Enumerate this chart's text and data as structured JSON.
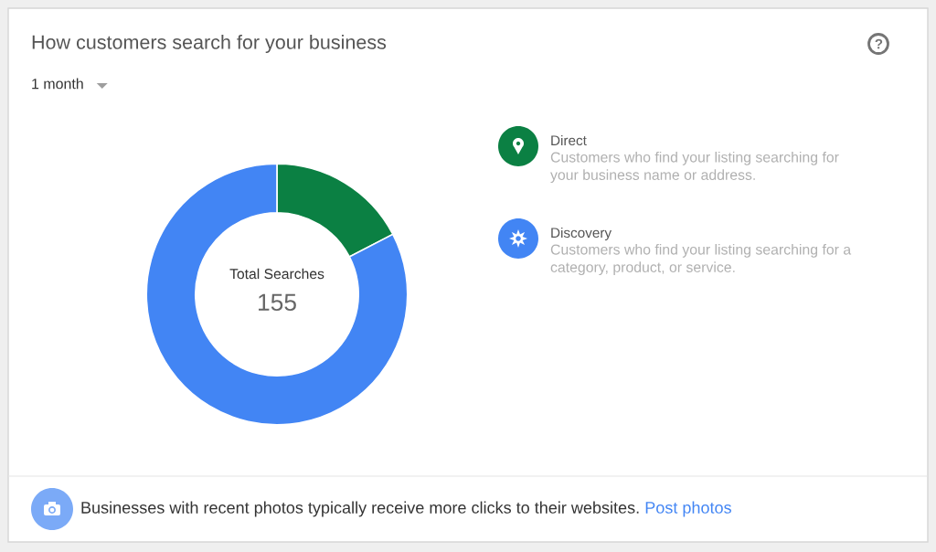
{
  "chart_data": {
    "type": "donut",
    "title": "How customers search for your business",
    "categories": [
      "Direct",
      "Discovery"
    ],
    "values": [
      17.4,
      82.6
    ],
    "colors": [
      "#0b8043",
      "#4285f4"
    ],
    "legend": "right",
    "annotations": [
      "1 month",
      "Total Searches",
      "155",
      "Customers who find your listing searching for your business name or address.",
      "Customers who find your listing searching for a category, product, or service.",
      "Businesses with recent photos typically receive more clicks to their websites.",
      "Post photos"
    ]
  }
}
